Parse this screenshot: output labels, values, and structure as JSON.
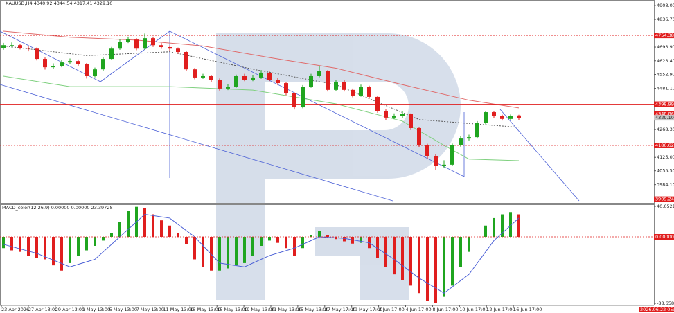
{
  "chart_data": [
    {
      "type": "candlestick",
      "title": "XAUUSD,H4  4340.92 4344.54 4317.41 4329.10",
      "up_color": "#1fa51f",
      "down_color": "#e01e1e",
      "candles": {
        "open": [
          4690,
          4704,
          4704,
          4690,
          4686,
          4633,
          4590,
          4597,
          4615,
          4622,
          4608,
          4544,
          4579,
          4633,
          4686,
          4722,
          4733,
          4686,
          4740,
          4704,
          4694,
          4686,
          4669,
          4579,
          4537,
          4544,
          4526,
          4480,
          4490,
          4544,
          4526,
          4537,
          4562,
          4526,
          4508,
          4455,
          4383,
          4490,
          4544,
          4569,
          4473,
          4515,
          4473,
          4444,
          4490,
          4437,
          4365,
          4330,
          4337,
          4348,
          4276,
          4187,
          4133,
          4080,
          4087,
          4187,
          4222,
          4229,
          4301,
          4358,
          4337,
          4323,
          4340.92
        ],
        "high": [
          4716,
          4718,
          4712,
          4698,
          4692,
          4640,
          4610,
          4628,
          4635,
          4630,
          4612,
          4588,
          4640,
          4695,
          4735,
          4748,
          4740,
          4764,
          4748,
          4715,
          4702,
          4692,
          4674,
          4586,
          4556,
          4550,
          4532,
          4502,
          4552,
          4556,
          4548,
          4575,
          4568,
          4534,
          4514,
          4460,
          4498,
          4556,
          4598,
          4575,
          4525,
          4522,
          4480,
          4500,
          4495,
          4442,
          4372,
          4352,
          4362,
          4352,
          4282,
          4195,
          4140,
          4110,
          4196,
          4235,
          4242,
          4312,
          4365,
          4362,
          4345,
          4346,
          4344.54
        ],
        "low": [
          4680,
          4692,
          4682,
          4672,
          4625,
          4578,
          4582,
          4590,
          4606,
          4598,
          4532,
          4538,
          4572,
          4626,
          4680,
          4715,
          4678,
          4680,
          4695,
          4685,
          4676,
          4660,
          4570,
          4528,
          4530,
          4515,
          4470,
          4472,
          4484,
          4518,
          4518,
          4530,
          4518,
          4498,
          4446,
          4372,
          4378,
          4484,
          4538,
          4465,
          4466,
          4465,
          4435,
          4438,
          4428,
          4355,
          4318,
          4322,
          4328,
          4266,
          4176,
          4120,
          4060,
          4070,
          4082,
          4180,
          4212,
          4222,
          4295,
          4328,
          4315,
          4318,
          4317.41
        ],
        "close": [
          4704,
          4704,
          4690,
          4686,
          4633,
          4590,
          4597,
          4615,
          4622,
          4608,
          4544,
          4579,
          4633,
          4686,
          4722,
          4733,
          4686,
          4740,
          4704,
          4694,
          4686,
          4669,
          4579,
          4537,
          4544,
          4526,
          4480,
          4490,
          4544,
          4526,
          4537,
          4562,
          4526,
          4508,
          4455,
          4383,
          4490,
          4544,
          4569,
          4473,
          4515,
          4473,
          4444,
          4490,
          4437,
          4365,
          4330,
          4337,
          4348,
          4276,
          4187,
          4133,
          4080,
          4087,
          4187,
          4222,
          4229,
          4301,
          4358,
          4337,
          4323,
          4337,
          4329.1
        ]
      },
      "lines": [
        {
          "color": "#e06a6a",
          "x": [
            0,
            8,
            16,
            24,
            32,
            40,
            48,
            56,
            62
          ],
          "values": [
            4776,
            4745,
            4730,
            4700,
            4640,
            4585,
            4500,
            4420,
            4380
          ]
        },
        {
          "color": "#7fd07f",
          "x": [
            0,
            8,
            20,
            30,
            40,
            48,
            53,
            56,
            62
          ],
          "values": [
            4544,
            4490,
            4490,
            4472,
            4401,
            4312,
            4187,
            4116,
            4108
          ]
        },
        {
          "color": "#555555",
          "dash": true,
          "x": [
            0,
            10,
            20,
            30,
            40,
            50,
            62
          ],
          "values": [
            4700,
            4650,
            4670,
            4580,
            4500,
            4320,
            4280
          ]
        }
      ],
      "levels": [
        {
          "value": 4754.38,
          "dash": true
        },
        {
          "value": 4398.99,
          "dash": false
        },
        {
          "value": 4348.86,
          "dash": false
        },
        {
          "value": 4186.62,
          "dash": true
        },
        {
          "value": 3909.24,
          "dash": true
        }
      ],
      "level_color": "#e01e1e",
      "current_price": {
        "value": 4329.1,
        "label": "4329.10"
      },
      "ylim": [
        3890,
        4937
      ],
      "yticks": [
        {
          "value": 4908,
          "label": "4908.00"
        },
        {
          "value": 4836.7,
          "label": "4836.70"
        },
        {
          "value": 4693.9,
          "label": "4693.90"
        },
        {
          "value": 4623.4,
          "label": "4623.40"
        },
        {
          "value": 4552.9,
          "label": "4552.90"
        },
        {
          "value": 4481.1,
          "label": "4481.10"
        },
        {
          "value": 4268.3,
          "label": "4268.30"
        },
        {
          "value": 4125,
          "label": "4125.00"
        },
        {
          "value": 4055.5,
          "label": "4055.50"
        },
        {
          "value": 3984.1,
          "label": "3984.10"
        }
      ],
      "categories": [
        "23 Apr 2026",
        "27 Apr 13:00",
        "29 Apr 13:00",
        "1 May 13:00",
        "5 May 13:00",
        "7 May 13:00",
        "11 May 13:00",
        "13 May 13:00",
        "15 May 13:00",
        "19 May 13:00",
        "21 May 13:00",
        "25 May 13:00",
        "27 May 17:00",
        "29 May 17:00",
        "2 Jun 17:00",
        "4 Jun 17:00",
        "8 Jun 17:00",
        "10 Jun 17:00",
        "12 Jun 17:00",
        "16 Jun 17:00"
      ],
      "x_tag": "2026.06.22 05:00"
    },
    {
      "type": "macd",
      "title": "MACD_color(12,26,9) 0.00000 0.00000 23.39728",
      "up_color": "#1fa51f",
      "down_color": "#e01e1e",
      "values": [
        -15,
        -18,
        -20,
        -25,
        -28,
        -30,
        -38,
        -45,
        -35,
        -25,
        -18,
        -12,
        -5,
        5,
        20,
        35,
        40,
        38,
        30,
        22,
        15,
        5,
        -10,
        -30,
        -40,
        -45,
        -45,
        -42,
        -38,
        -35,
        -25,
        -12,
        -5,
        -8,
        -15,
        -25,
        -15,
        2,
        8,
        2,
        -3,
        -6,
        -9,
        -8,
        -15,
        -28,
        -40,
        -50,
        -58,
        -65,
        -75,
        -85,
        -88,
        -80,
        -65,
        -40,
        -20,
        0,
        15,
        25,
        30,
        33,
        30
      ],
      "signal": {
        "color": "#4a5fd6",
        "x": [
          0,
          4,
          8,
          11,
          14,
          17,
          20,
          23,
          26,
          29,
          32,
          35,
          38,
          41,
          44,
          47,
          50,
          53,
          56,
          59,
          62
        ],
        "values": [
          -10,
          -22,
          -40,
          -30,
          0,
          30,
          25,
          0,
          -35,
          -40,
          -25,
          -15,
          0,
          -2,
          -8,
          -30,
          -55,
          -75,
          -50,
          -5,
          25
        ]
      },
      "ylim": [
        -90.5,
        43.4
      ],
      "yticks": [
        40.65217,
        {
          "value": 0,
          "label": "0.00000"
        },
        -88.65882
      ]
    }
  ]
}
